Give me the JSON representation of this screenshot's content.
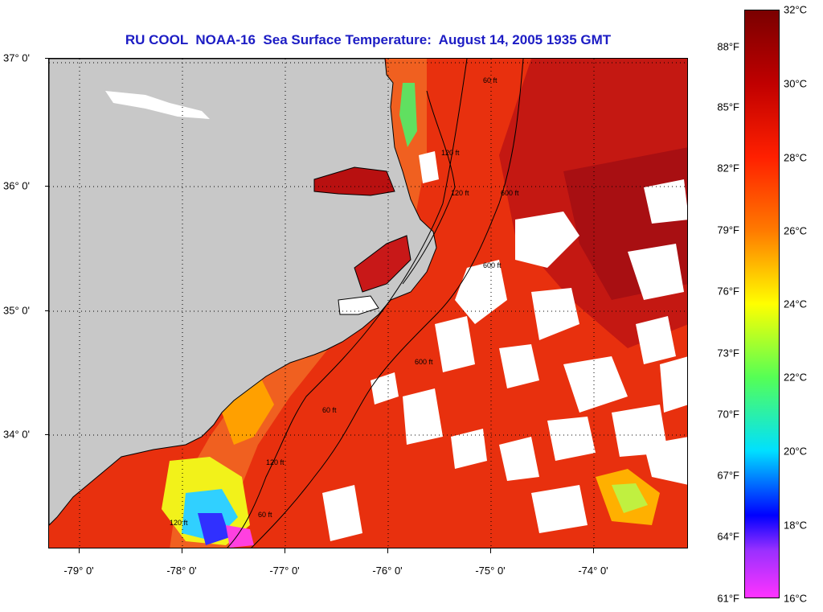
{
  "title": "RU COOL  NOAA-16  Sea Surface Temperature:  August 14, 2005 1935 GMT",
  "latitude_labels": [
    "37° 0'",
    "36° 0'",
    "35° 0'",
    "34° 0'"
  ],
  "longitude_labels": [
    "-79° 0'",
    "-78° 0'",
    "-77° 0'",
    "-76° 0'",
    "-75° 0'",
    "-74° 0'"
  ],
  "isobath_labels": [
    "60 ft",
    "120 ft",
    "600 ft",
    "120 ft",
    "600 ft",
    "600 ft",
    "120 ft",
    "60 ft",
    "120 ft",
    "60 ft"
  ],
  "colorbar": {
    "celsius": [
      "32°C",
      "30°C",
      "28°C",
      "26°C",
      "24°C",
      "22°C",
      "20°C",
      "18°C",
      "16°C"
    ],
    "fahrenheit": [
      "88°F",
      "85°F",
      "82°F",
      "79°F",
      "76°F",
      "73°F",
      "70°F",
      "67°F",
      "64°F",
      "61°F"
    ],
    "range_c": [
      16,
      32
    ],
    "colors": [
      "#7a0000",
      "#c00000",
      "#ff2000",
      "#ff7a00",
      "#ffff00",
      "#55ff55",
      "#00e0ff",
      "#0000ff",
      "#9a30ff",
      "#ff33ff"
    ]
  },
  "colors": {
    "land": "#c8c8c8",
    "cloud": "#ffffff",
    "title": "#1c1cc4",
    "ocean_warm": "#e8240a",
    "ocean_hot": "#b81010"
  }
}
